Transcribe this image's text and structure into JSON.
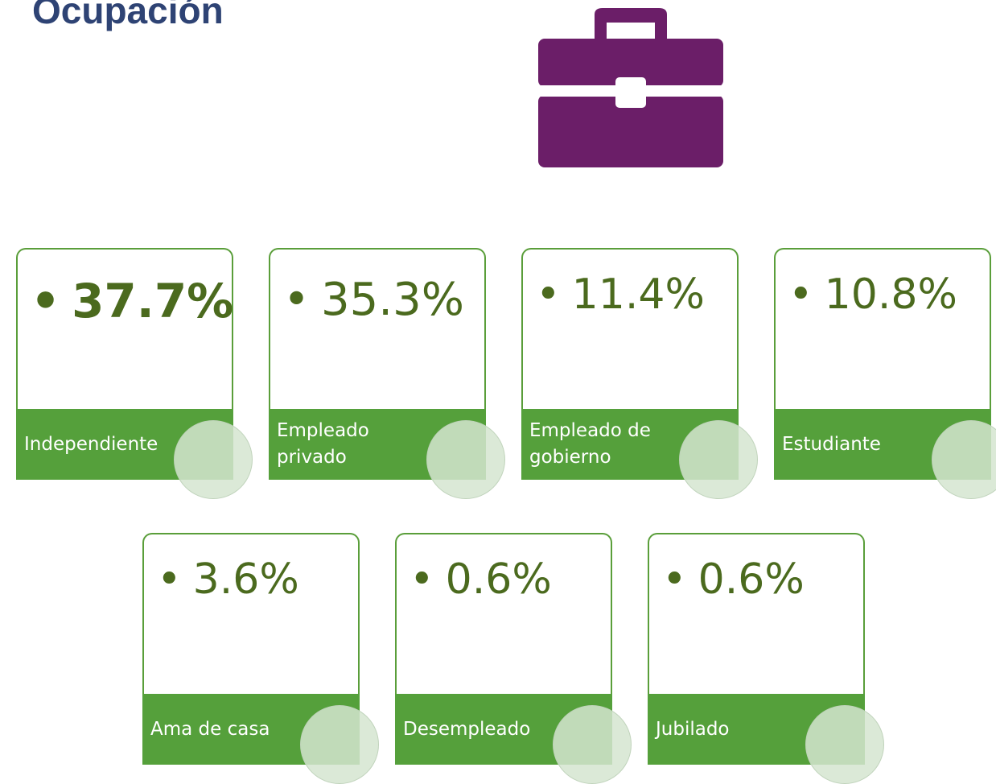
{
  "title": "Ocupación",
  "cards": [
    {
      "value": "37.7%",
      "label": "Independiente"
    },
    {
      "value": "35.3%",
      "label": "Empleado privado"
    },
    {
      "value": "11.4%",
      "label": "Empleado de gobierno"
    },
    {
      "value": "10.8%",
      "label": "Estudiante"
    },
    {
      "value": "3.6%",
      "label": "Ama de casa"
    },
    {
      "value": "0.6%",
      "label": "Desempleado"
    },
    {
      "value": "0.6%",
      "label": "Jubilado"
    }
  ]
}
